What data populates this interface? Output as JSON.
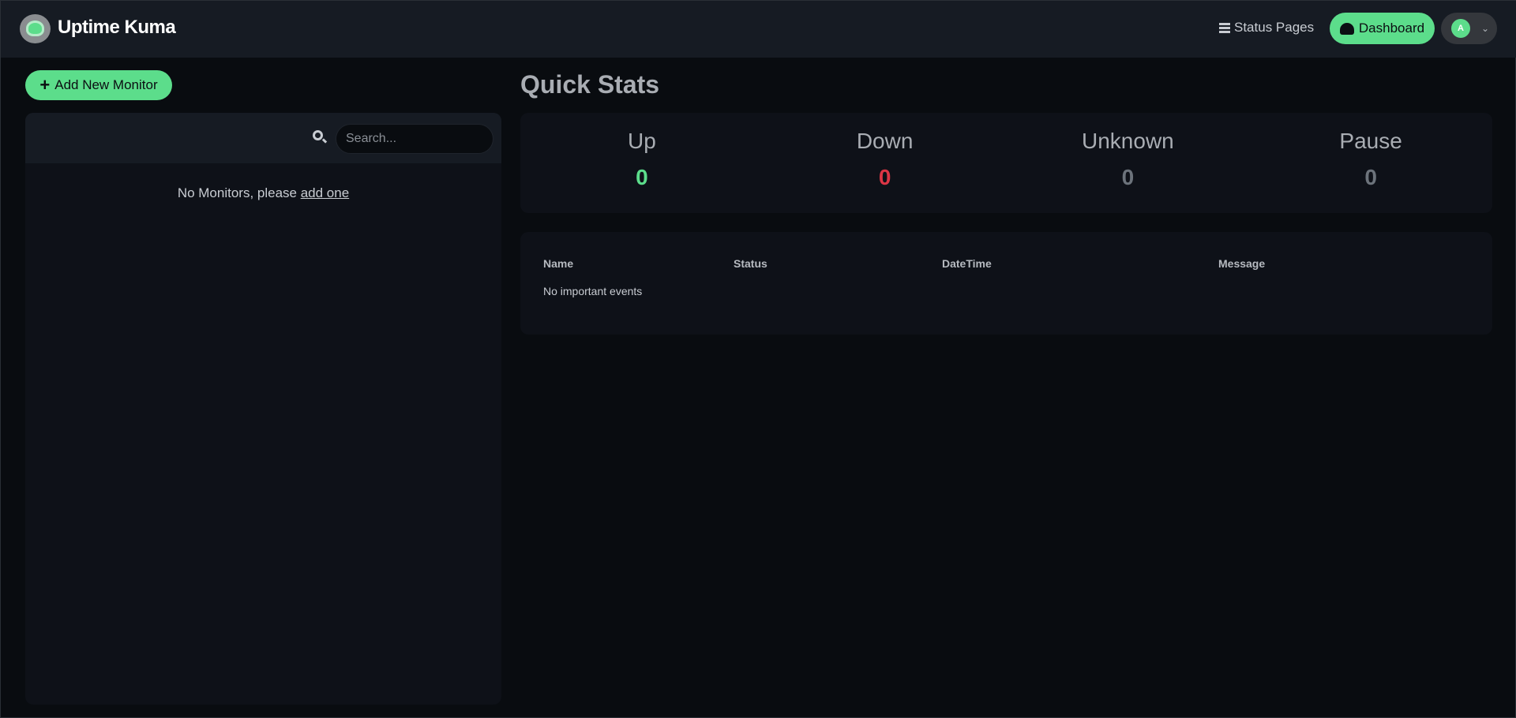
{
  "header": {
    "brand": "Uptime Kuma",
    "status_pages": "Status Pages",
    "dashboard": "Dashboard",
    "avatar_initial": "A"
  },
  "sidebar": {
    "add_button": "Add New Monitor",
    "search_placeholder": "Search...",
    "empty_text": "No Monitors, please ",
    "empty_link": "add one"
  },
  "main": {
    "title": "Quick Stats",
    "stats": [
      {
        "label": "Up",
        "value": "0",
        "color": "#5cdd8b"
      },
      {
        "label": "Down",
        "value": "0",
        "color": "#dc3545"
      },
      {
        "label": "Unknown",
        "value": "0",
        "color": "#6c737b"
      },
      {
        "label": "Pause",
        "value": "0",
        "color": "#6c737b"
      }
    ],
    "events": {
      "columns": [
        "Name",
        "Status",
        "DateTime",
        "Message"
      ],
      "empty": "No important events"
    }
  }
}
